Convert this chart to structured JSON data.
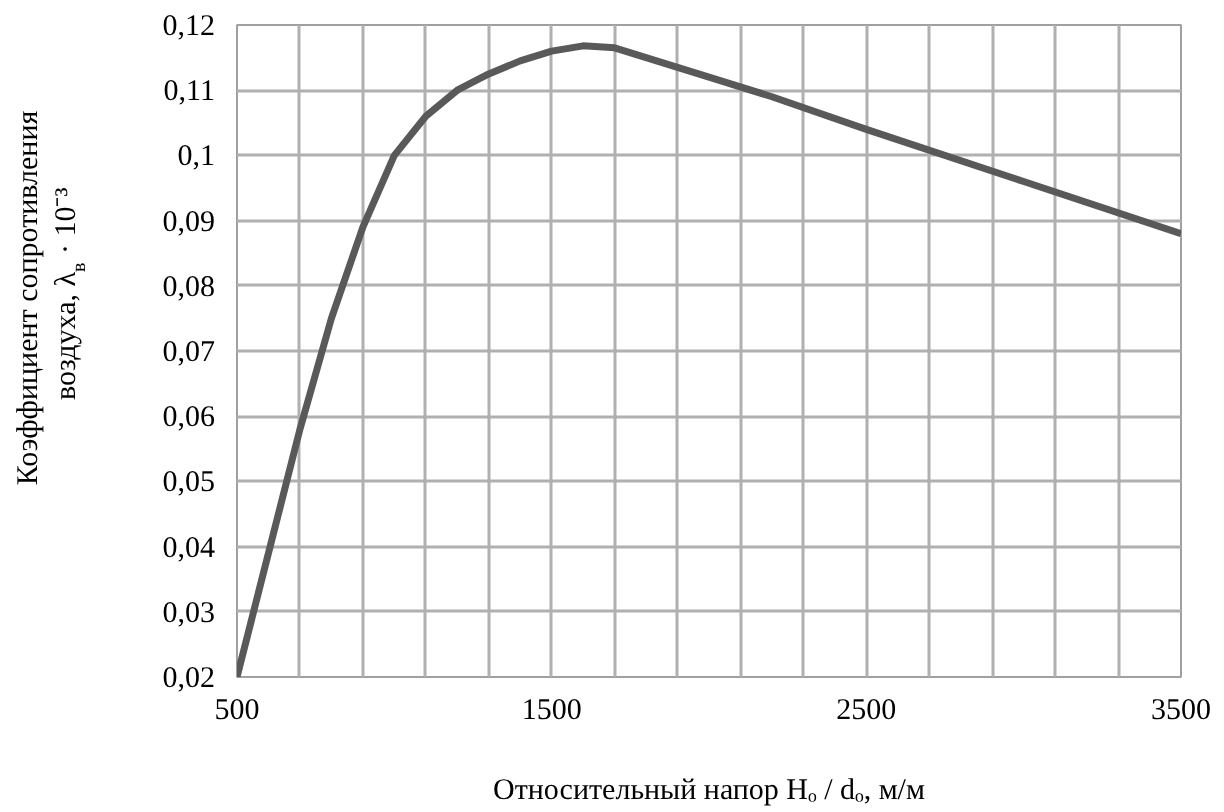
{
  "chart_data": {
    "type": "line",
    "xlabel": "Относительный напор Hₒ / dₒ, м/м",
    "ylabel": "Коэффициент сопротивления\nвоздуха, λ$_{в}$ · 10⁻³",
    "x": [
      500,
      600,
      700,
      800,
      900,
      1000,
      1100,
      1200,
      1300,
      1400,
      1500,
      1600,
      1700,
      1800,
      2000,
      2200,
      2500,
      3000,
      3500
    ],
    "series": [
      {
        "color": "#595959",
        "values": [
          0.02,
          0.039,
          0.058,
          0.075,
          0.089,
          0.1,
          0.106,
          0.11,
          0.1125,
          0.1145,
          0.116,
          0.1168,
          0.1165,
          0.115,
          0.112,
          0.109,
          0.104,
          0.096,
          0.088
        ]
      }
    ],
    "xlim": [
      500,
      3500
    ],
    "xticks": [
      500,
      {
        "value": 700,
        "label": null
      },
      {
        "value": 900,
        "label": null
      },
      {
        "value": 1100,
        "label": null
      },
      {
        "value": 1300,
        "label": null
      },
      1500,
      {
        "value": 1700,
        "label": null
      },
      {
        "value": 1900,
        "label": null
      },
      {
        "value": 2100,
        "label": null
      },
      {
        "value": 2300,
        "label": null
      },
      2500,
      {
        "value": 2700,
        "label": null
      },
      {
        "value": 2900,
        "label": null
      },
      {
        "value": 3100,
        "label": null
      },
      {
        "value": 3300,
        "label": null
      },
      3500
    ],
    "ylim": [
      0.02,
      0.12
    ],
    "yticks": [
      {
        "value": 0.02,
        "label": "0,02"
      },
      {
        "value": 0.03,
        "label": "0,03"
      },
      {
        "value": 0.04,
        "label": "0,04"
      },
      {
        "value": 0.05,
        "label": "0,05"
      },
      {
        "value": 0.06,
        "label": "0,06"
      },
      {
        "value": 0.07,
        "label": "0,07"
      },
      {
        "value": 0.08,
        "label": "0,08"
      },
      {
        "value": 0.09,
        "label": "0,09"
      },
      {
        "value": 0.1,
        "label": "0,1"
      },
      {
        "value": 0.11,
        "label": "0,11"
      },
      {
        "value": 0.12,
        "label": "0,12"
      }
    ],
    "grid": true,
    "marker": "none",
    "line_style": "solid"
  }
}
